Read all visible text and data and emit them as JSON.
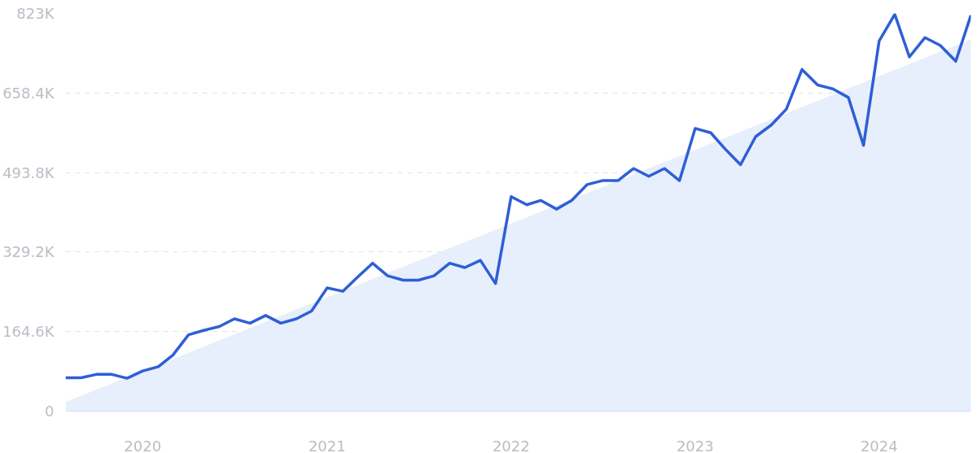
{
  "chart_data": {
    "type": "line",
    "x": [
      "2019-08",
      "2019-09",
      "2019-10",
      "2019-11",
      "2019-12",
      "2020-01",
      "2020-02",
      "2020-03",
      "2020-04",
      "2020-05",
      "2020-06",
      "2020-07",
      "2020-08",
      "2020-09",
      "2020-10",
      "2020-11",
      "2020-12",
      "2021-01",
      "2021-02",
      "2021-03",
      "2021-04",
      "2021-05",
      "2021-06",
      "2021-07",
      "2021-08",
      "2021-09",
      "2021-10",
      "2021-11",
      "2021-12",
      "2022-01",
      "2022-02",
      "2022-03",
      "2022-04",
      "2022-05",
      "2022-06",
      "2022-07",
      "2022-08",
      "2022-09",
      "2022-10",
      "2022-11",
      "2022-12",
      "2023-01",
      "2023-02",
      "2023-03",
      "2023-04",
      "2023-05",
      "2023-06",
      "2023-07",
      "2023-08",
      "2023-09",
      "2023-10",
      "2023-11",
      "2023-12",
      "2024-01",
      "2024-02",
      "2024-03",
      "2024-04",
      "2024-05",
      "2024-06",
      "2024-07"
    ],
    "series": [
      {
        "type": "area",
        "color": "#e3edfb",
        "x": [
          "2019-08",
          "2024-07"
        ],
        "values": [
          19000,
          769000
        ]
      },
      {
        "color": "#2f5fd6",
        "values": [
          69000,
          69000,
          76000,
          76000,
          68000,
          83000,
          92000,
          116000,
          158000,
          167000,
          175000,
          191000,
          182000,
          198000,
          182000,
          191000,
          207000,
          255000,
          248000,
          276000,
          306000,
          280000,
          271000,
          271000,
          280000,
          306000,
          297000,
          312000,
          264000,
          444000,
          427000,
          436000,
          418000,
          436000,
          469000,
          477000,
          477000,
          502000,
          486000,
          502000,
          477000,
          585000,
          576000,
          543000,
          510000,
          568000,
          592000,
          625000,
          707000,
          675000,
          667000,
          649000,
          550000,
          766000,
          821000,
          733000,
          773000,
          757000,
          724000,
          819000
        ]
      }
    ],
    "xlim": [
      "2019-08",
      "2024-07"
    ],
    "xticks": [
      "2020",
      "2021",
      "2022",
      "2023",
      "2024"
    ],
    "ylim": [
      0,
      823000
    ],
    "yticks": [
      {
        "value": 0,
        "label": "0"
      },
      {
        "value": 164600,
        "label": "164.6K"
      },
      {
        "value": 329200,
        "label": "329.2K"
      },
      {
        "value": 493800,
        "label": "493.8K"
      },
      {
        "value": 658400,
        "label": "658.4K"
      },
      {
        "value": 823000,
        "label": "823K"
      }
    ],
    "grid": "y",
    "line_style": "solid"
  }
}
